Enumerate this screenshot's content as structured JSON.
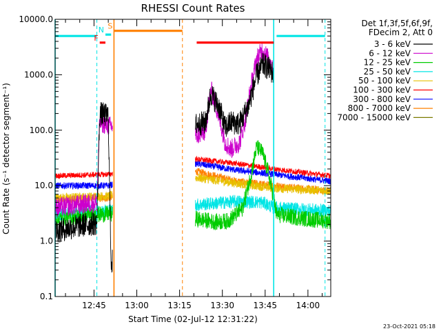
{
  "chart_data": {
    "type": "line",
    "title": "RHESSI Count Rates",
    "xlabel": "Start Time (02-Jul-12 12:31:22)",
    "ylabel": "Count Rate (s⁻¹ detector segment⁻¹)",
    "x_scale": "time",
    "y_scale": "log",
    "xlim": [
      "12:31:22",
      "14:08:00"
    ],
    "ylim": [
      0.1,
      10000
    ],
    "x_ticks": [
      "12:45",
      "13:00",
      "13:15",
      "13:30",
      "13:45",
      "14:00"
    ],
    "y_ticks": [
      "0.1",
      "1.0",
      "10.0",
      "100.0",
      "1000.0",
      "10000.0"
    ],
    "grid": false,
    "legend_position": "top-right",
    "legend_header": [
      "Det 1f,3f,5f,6f,9f,",
      "FDecim 2, Att 0"
    ],
    "footer_text": "23-Oct-2021 05:18",
    "colors": {
      "3-6": "#000000",
      "6-12": "#cc00cc",
      "12-25": "#00cc00",
      "25-50": "#00e5e5",
      "50-100": "#e8c000",
      "100-300": "#ff0000",
      "300-800": "#0000ff",
      "800-7000": "#ff8000",
      "7000-15000": "#7a7a00",
      "attenuator_band": "#00e5e5",
      "saa_band": "#ff8000",
      "flare_band": "#ff0000"
    },
    "series": [
      {
        "name": "3 - 6 keV",
        "key": "3-6",
        "x": [
          "12:31:22",
          "12:40",
          "12:46",
          "12:47",
          "12:50",
          "12:51",
          "13:21",
          "13:24",
          "13:26",
          "13:29",
          "13:31",
          "13:33",
          "13:36",
          "13:39",
          "13:42",
          "13:44",
          "13:45",
          "13:47",
          "13:48"
        ],
        "y": [
          1.5,
          1.9,
          2.1,
          200,
          180,
          0.4,
          130,
          135,
          460,
          250,
          110,
          140,
          130,
          260,
          950,
          1500,
          1450,
          1200,
          1000
        ]
      },
      {
        "name": "6 - 12 keV",
        "key": "6-12",
        "x": [
          "12:31:22",
          "12:46",
          "12:47",
          "12:50",
          "13:21",
          "13:24",
          "13:26",
          "13:29",
          "13:31",
          "13:33",
          "13:36",
          "13:38",
          "13:40",
          "13:42",
          "13:44",
          "13:45",
          "13:47",
          "13:48"
        ],
        "y": [
          4,
          5,
          140,
          120,
          80,
          95,
          550,
          160,
          60,
          45,
          60,
          150,
          600,
          1900,
          2800,
          2400,
          1600,
          1000
        ]
      },
      {
        "name": "12 - 25 keV",
        "key": "12-25",
        "x": [
          "12:31:22",
          "12:40",
          "12:50",
          "13:21",
          "13:28",
          "13:32",
          "13:37",
          "13:40",
          "13:42",
          "13:44",
          "13:46",
          "13:48",
          "13:49",
          "14:00",
          "14:08"
        ],
        "y": [
          2.5,
          2.8,
          3.1,
          2.5,
          2.2,
          2.3,
          3.8,
          15,
          50,
          40,
          18,
          6,
          3,
          2.5,
          2.3
        ]
      },
      {
        "name": "25 - 50 keV",
        "key": "25-50",
        "x": [
          "12:31:22",
          "12:50",
          "13:21",
          "13:35",
          "13:44",
          "13:48",
          "14:08"
        ],
        "y": [
          3,
          3.6,
          4.5,
          5.2,
          5,
          4,
          3.5
        ]
      },
      {
        "name": "50 - 100 keV",
        "key": "50-100",
        "x": [
          "12:31:22",
          "12:50",
          "13:21",
          "13:35",
          "13:48",
          "14:08"
        ],
        "y": [
          6,
          6.5,
          14,
          11,
          9,
          8
        ]
      },
      {
        "name": "100 - 300 keV",
        "key": "100-300",
        "x": [
          "12:31:22",
          "12:50",
          "13:21",
          "13:35",
          "13:48",
          "14:08"
        ],
        "y": [
          15,
          16,
          30,
          25,
          20,
          15
        ]
      },
      {
        "name": "300 - 800 keV",
        "key": "300-800",
        "x": [
          "12:31:22",
          "12:50",
          "13:21",
          "13:35",
          "13:48",
          "14:08"
        ],
        "y": [
          10,
          10,
          25,
          19,
          16,
          12
        ]
      },
      {
        "name": "800 - 7000 keV",
        "key": "800-7000",
        "x": [
          "12:31:22",
          "12:50",
          "13:21",
          "13:35",
          "13:48",
          "14:08"
        ],
        "y": [
          5.5,
          6,
          18,
          12,
          10,
          8
        ]
      },
      {
        "name": "7000 - 15000 keV",
        "key": "7000-15000",
        "x": [],
        "y": []
      }
    ],
    "status_bars": [
      {
        "label": "",
        "color_key": "attenuator_band",
        "start": "12:31:22",
        "end": "12:46",
        "level": 5000
      },
      {
        "label": "F",
        "color_key": "flare_band",
        "start": "12:47",
        "end": "12:49",
        "level": 3800
      },
      {
        "label": "N",
        "color_key": "attenuator_band",
        "start": "12:49",
        "end": "12:51",
        "level": 5300
      },
      {
        "label": "S",
        "color_key": "saa_band",
        "start": "12:52",
        "end": "13:16",
        "level": 6200
      },
      {
        "label": "",
        "color_key": "flare_band",
        "start": "13:21",
        "end": "13:48",
        "level": 3800
      },
      {
        "label": "",
        "color_key": "attenuator_band",
        "start": "13:49",
        "end": "14:06",
        "level": 5000
      }
    ],
    "vertical_markers": [
      {
        "time": "12:31:22",
        "color_key": "attenuator_band",
        "style": "solid"
      },
      {
        "time": "12:46",
        "color_key": "attenuator_band",
        "style": "dashed"
      },
      {
        "time": "12:52",
        "color_key": "saa_band",
        "style": "solid"
      },
      {
        "time": "13:16",
        "color_key": "saa_band",
        "style": "dashed"
      },
      {
        "time": "13:48",
        "color_key": "attenuator_band",
        "style": "solid"
      },
      {
        "time": "14:06",
        "color_key": "attenuator_band",
        "style": "dashed"
      }
    ]
  }
}
